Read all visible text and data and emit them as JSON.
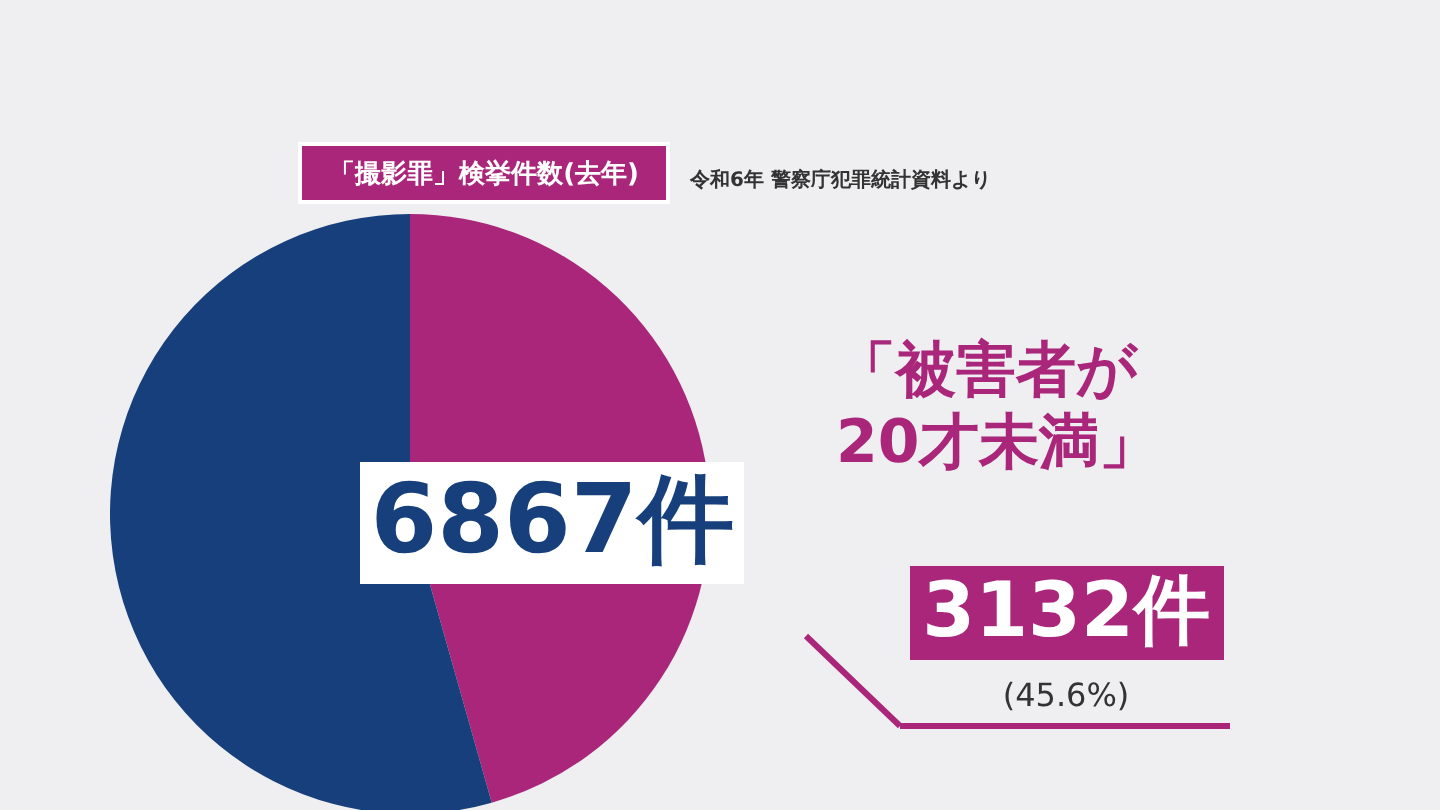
{
  "chart_data": {
    "type": "pie",
    "title": "「撮影罪」検挙件数(去年)",
    "categories": [
      "「被害者が\n20才未満」",
      null
    ],
    "values": [
      3132,
      3735
    ],
    "colors": [
      "#a9267a",
      "#173f7c"
    ],
    "value_labels": [
      "3132件",
      null
    ],
    "annotations": [
      "6867件",
      "(45.6%)",
      "令和6年 警察庁犯罪統計資料より"
    ]
  }
}
